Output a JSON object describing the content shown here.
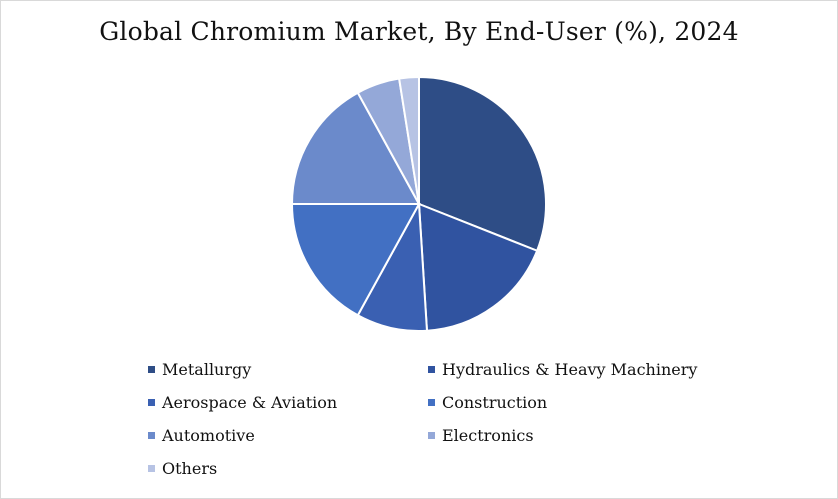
{
  "chart_data": {
    "type": "pie",
    "title": "Global Chromium Market, By End-User (%), 2024",
    "slices": [
      {
        "label": "Metallurgy",
        "value": 31,
        "color": "#2e4d86"
      },
      {
        "label": "Hydraulics & Heavy Machinery",
        "value": 18,
        "color": "#3053a0"
      },
      {
        "label": "Aerospace & Aviation",
        "value": 9,
        "color": "#3a60b2"
      },
      {
        "label": "Construction",
        "value": 17,
        "color": "#4270c3"
      },
      {
        "label": "Automotive",
        "value": 17,
        "color": "#6b8acb"
      },
      {
        "label": "Electronics",
        "value": 5.5,
        "color": "#94a8d8"
      },
      {
        "label": "Others",
        "value": 2.5,
        "color": "#b7c3e4"
      }
    ],
    "legend_position": "bottom"
  }
}
